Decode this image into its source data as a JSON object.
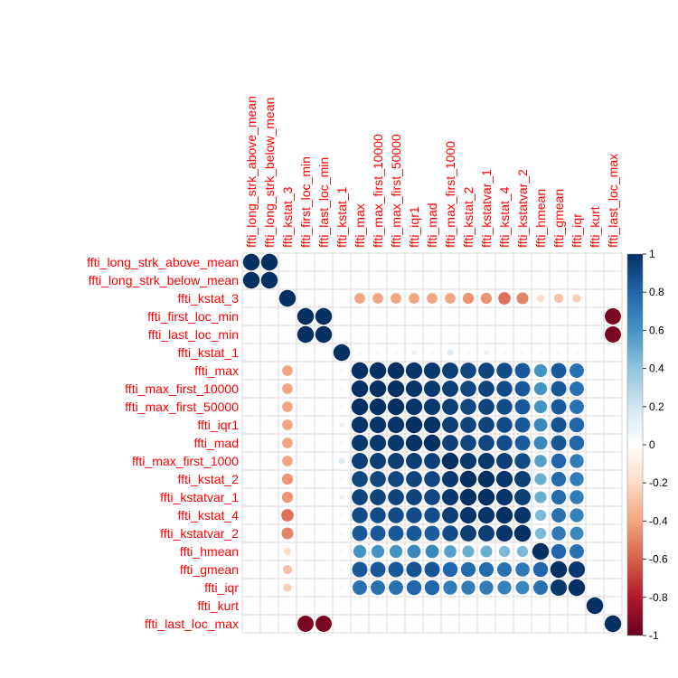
{
  "chart_data": {
    "type": "heatmap",
    "method": "circle",
    "variables": [
      "ffti_long_strk_above_mean",
      "ffti_long_strk_below_mean",
      "ffti_kstat_3",
      "ffti_first_loc_min",
      "ffti_last_loc_min",
      "ffti_kstat_1",
      "ffti_max",
      "ffti_max_first_10000",
      "ffti_max_first_50000",
      "ffti_iqr1",
      "ffti_mad",
      "ffti_max_first_1000",
      "ffti_kstat_2",
      "ffti_kstatvar_1",
      "ffti_kstat_4",
      "ffti_kstatvar_2",
      "ffti_hmean",
      "ffti_gmean",
      "ffti_iqr",
      "ffti_kurt",
      "ffti_last_loc_max"
    ],
    "matrix": [
      [
        1,
        1,
        0,
        0,
        0,
        0,
        0,
        0,
        0,
        0,
        0,
        0,
        0,
        0,
        0,
        0,
        0,
        0,
        0,
        0,
        0
      ],
      [
        1,
        1,
        0,
        0,
        0,
        0,
        0,
        0,
        0,
        0,
        0,
        0,
        0,
        0,
        0,
        0,
        0,
        0,
        0,
        0,
        0
      ],
      [
        0,
        0,
        1,
        0,
        0,
        0,
        -0.4,
        -0.4,
        -0.4,
        -0.4,
        -0.4,
        -0.4,
        -0.45,
        -0.45,
        -0.55,
        -0.5,
        -0.2,
        -0.3,
        -0.25,
        0,
        0
      ],
      [
        0,
        0,
        0,
        1,
        1,
        0,
        0,
        0,
        0,
        0,
        0,
        0,
        0,
        0,
        0,
        0,
        0,
        0,
        0,
        0,
        -0.95
      ],
      [
        0,
        0,
        0,
        1,
        1,
        0,
        0,
        0,
        0,
        0,
        0,
        0,
        0,
        0,
        0,
        0,
        0,
        0,
        0,
        0,
        -0.95
      ],
      [
        0,
        0,
        0,
        0,
        0,
        1,
        0.05,
        0.05,
        0.05,
        0.1,
        0.05,
        0.15,
        0.05,
        0.1,
        0.05,
        0.05,
        0.05,
        0.05,
        0.05,
        0,
        0
      ],
      [
        0,
        0,
        -0.4,
        0,
        0,
        0.05,
        1,
        1,
        1,
        0.98,
        0.97,
        0.95,
        0.92,
        0.93,
        0.9,
        0.85,
        0.6,
        0.85,
        0.75,
        0,
        0
      ],
      [
        0,
        0,
        -0.4,
        0,
        0,
        0.05,
        1,
        1,
        1,
        0.98,
        0.97,
        0.95,
        0.92,
        0.93,
        0.9,
        0.85,
        0.6,
        0.85,
        0.75,
        0,
        0
      ],
      [
        0,
        0,
        -0.4,
        0,
        0,
        0.05,
        1,
        1,
        1,
        0.98,
        0.97,
        0.95,
        0.92,
        0.93,
        0.9,
        0.85,
        0.6,
        0.85,
        0.75,
        0,
        0
      ],
      [
        0,
        0,
        -0.4,
        0,
        0,
        0.1,
        0.98,
        0.98,
        0.98,
        1,
        0.99,
        0.95,
        0.93,
        0.93,
        0.9,
        0.85,
        0.65,
        0.87,
        0.8,
        0,
        0
      ],
      [
        0,
        0,
        -0.4,
        0,
        0,
        0.05,
        0.97,
        0.97,
        0.97,
        0.99,
        1,
        0.94,
        0.92,
        0.92,
        0.89,
        0.84,
        0.65,
        0.86,
        0.8,
        0,
        0
      ],
      [
        0,
        0,
        -0.4,
        0,
        0,
        0.15,
        0.95,
        0.95,
        0.95,
        0.95,
        0.94,
        1,
        0.97,
        0.97,
        0.95,
        0.9,
        0.55,
        0.8,
        0.7,
        0,
        0
      ],
      [
        0,
        0,
        -0.45,
        0,
        0,
        0.05,
        0.92,
        0.92,
        0.92,
        0.93,
        0.92,
        0.97,
        1,
        1,
        0.98,
        0.95,
        0.5,
        0.78,
        0.7,
        0,
        0
      ],
      [
        0,
        0,
        -0.45,
        0,
        0,
        0.1,
        0.93,
        0.93,
        0.93,
        0.93,
        0.92,
        0.97,
        1,
        1,
        0.98,
        0.95,
        0.5,
        0.78,
        0.7,
        0,
        0
      ],
      [
        0,
        0,
        -0.55,
        0,
        0,
        0.05,
        0.9,
        0.9,
        0.9,
        0.9,
        0.89,
        0.95,
        0.98,
        0.98,
        1,
        0.98,
        0.45,
        0.75,
        0.68,
        0,
        0
      ],
      [
        0,
        0,
        -0.5,
        0,
        0,
        0.05,
        0.85,
        0.85,
        0.85,
        0.85,
        0.84,
        0.9,
        0.95,
        0.95,
        0.98,
        1,
        0.45,
        0.72,
        0.65,
        0,
        0
      ],
      [
        0,
        0,
        -0.2,
        0,
        0,
        0.05,
        0.6,
        0.6,
        0.6,
        0.65,
        0.65,
        0.55,
        0.5,
        0.5,
        0.45,
        0.45,
        1,
        0.8,
        0.75,
        0,
        0
      ],
      [
        0,
        0,
        -0.3,
        0,
        0,
        0.05,
        0.85,
        0.85,
        0.85,
        0.87,
        0.86,
        0.8,
        0.78,
        0.78,
        0.75,
        0.72,
        0.8,
        1,
        0.97,
        0,
        0
      ],
      [
        0,
        0,
        -0.25,
        0,
        0,
        0.05,
        0.75,
        0.75,
        0.75,
        0.8,
        0.8,
        0.7,
        0.7,
        0.7,
        0.68,
        0.65,
        0.75,
        0.97,
        1,
        0,
        0
      ],
      [
        0,
        0,
        0,
        0,
        0,
        0,
        0,
        0,
        0,
        0,
        0,
        0,
        0,
        0,
        0,
        0,
        0,
        0,
        0,
        1,
        0
      ],
      [
        0,
        0,
        0,
        -0.95,
        -0.95,
        0,
        0,
        0,
        0,
        0,
        0,
        0,
        0,
        0,
        0,
        0,
        0,
        0,
        0,
        0,
        1
      ]
    ],
    "colorbar": {
      "ticks": [
        1,
        0.8,
        0.6,
        0.4,
        0.2,
        0,
        -0.2,
        -0.4,
        -0.6,
        -0.8,
        -1
      ],
      "tick_labels": [
        "1",
        "0.8",
        "0.6",
        "0.4",
        "0.2",
        "0",
        "-0.2",
        "-0.4",
        "-0.6",
        "-0.8",
        "-1"
      ],
      "range": [
        -1,
        1
      ]
    },
    "colors": {
      "positive": "#053061",
      "mid": "#ffffff",
      "negative": "#67001f",
      "label": "#ff0000",
      "grid": "#d8d8d8"
    },
    "title": "",
    "xlabel": "",
    "ylabel": ""
  }
}
